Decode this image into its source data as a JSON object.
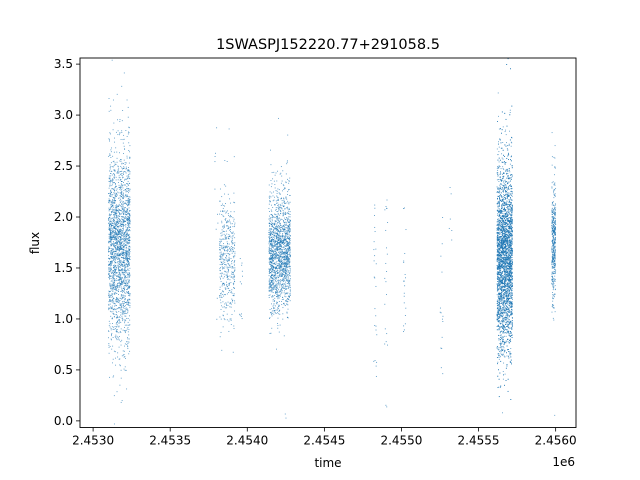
{
  "chart_data": {
    "type": "scatter",
    "title": "1SWASPJ152220.77+291058.5",
    "xlabel": "time",
    "ylabel": "flux",
    "x_offset_label": "1e6",
    "x_tick_labels": [
      "2.4530",
      "2.4535",
      "2.4540",
      "2.4545",
      "2.4550",
      "2.4555",
      "2.4560"
    ],
    "x_ticks": [
      2453000,
      2453500,
      2454000,
      2454500,
      2455000,
      2455500,
      2456000
    ],
    "y_tick_labels": [
      "0.0",
      "0.5",
      "1.0",
      "1.5",
      "2.0",
      "2.5",
      "3.0",
      "3.5"
    ],
    "y_ticks": [
      0.0,
      0.5,
      1.0,
      1.5,
      2.0,
      2.5,
      3.0,
      3.5
    ],
    "xlim": [
      2452915,
      2456132
    ],
    "ylim": [
      -0.065,
      3.56
    ],
    "grid": false,
    "marker_color": "#1f77b4",
    "series": [
      {
        "description_clusters": [
          {
            "x_range": [
              2453100,
              2453240
            ],
            "y_center": 1.7,
            "y_spread": 0.45,
            "n": 2200
          },
          {
            "x_range": [
              2453820,
              2453920
            ],
            "y_center": 1.6,
            "y_spread": 0.3,
            "n": 450
          },
          {
            "x_range": [
              2454140,
              2454280
            ],
            "y_center": 1.65,
            "y_spread": 0.28,
            "n": 1700
          },
          {
            "x_range": [
              2455620,
              2455720
            ],
            "y_center": 1.6,
            "y_spread": 0.45,
            "n": 4000
          },
          {
            "x_range": [
              2455975,
              2456000
            ],
            "y_center": 1.75,
            "y_spread": 0.3,
            "n": 450
          }
        ],
        "x": [
          2453100,
          2453180,
          2453240,
          2453850,
          2453900,
          2454180,
          2454250,
          2454830,
          2455020,
          2455260,
          2455320,
          2455620,
          2455680,
          2455720,
          2455990
        ],
        "y": [
          1.7,
          1.6,
          1.8,
          1.6,
          1.5,
          1.65,
          1.6,
          1.4,
          1.5,
          1.3,
          2.25,
          1.6,
          1.65,
          1.55,
          1.75
        ]
      }
    ]
  }
}
